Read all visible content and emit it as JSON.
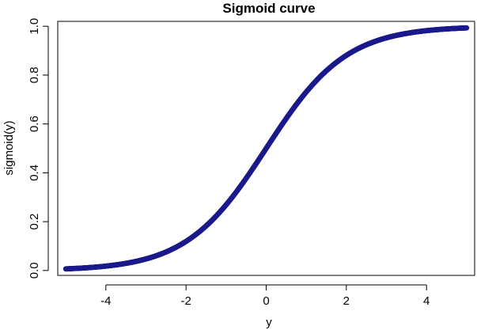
{
  "chart_data": {
    "type": "scatter",
    "title": "Sigmoid curve",
    "xlabel": "y",
    "ylabel": "sigmoid(y)",
    "xlim": [
      -5.2,
      5.2
    ],
    "ylim": [
      -0.02,
      1.02
    ],
    "x_ticks": [
      -4,
      -2,
      0,
      2,
      4
    ],
    "x_tick_labels": [
      "-4",
      "-2",
      "0",
      "2",
      "4"
    ],
    "y_ticks": [
      0.0,
      0.2,
      0.4,
      0.6,
      0.8,
      1.0
    ],
    "y_tick_labels": [
      "0.0",
      "0.2",
      "0.4",
      "0.6",
      "0.8",
      "1.0"
    ],
    "grid": false,
    "legend": "none",
    "color": "#1a1a8c",
    "series": [
      {
        "function": "1/(1+exp(-y))",
        "x_range": [
          -5,
          5
        ],
        "n_points": 1000
      }
    ]
  }
}
